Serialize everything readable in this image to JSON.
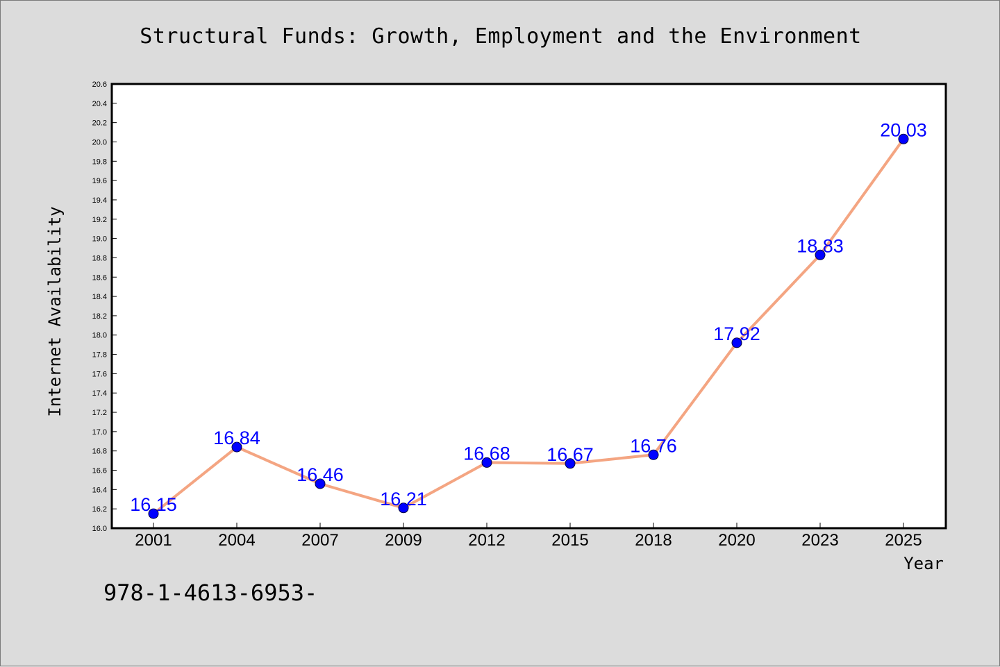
{
  "chart_data": {
    "type": "line",
    "title": "Structural Funds: Growth, Employment and the Environment",
    "xlabel": "Year",
    "ylabel": "Internet Availability",
    "categories": [
      "2001",
      "2004",
      "2007",
      "2009",
      "2012",
      "2015",
      "2018",
      "2020",
      "2023",
      "2025"
    ],
    "series": [
      {
        "values": [
          16.15,
          16.84,
          16.46,
          16.21,
          16.68,
          16.67,
          16.76,
          17.92,
          18.83,
          20.03
        ],
        "labels": [
          "16.15",
          "16.84",
          "16.46",
          "16.21",
          "16.68",
          "16.67",
          "16.76",
          "17.92",
          "18.83",
          "20.03"
        ],
        "line_color": "#f4a582",
        "marker_color": "#0000ff"
      }
    ],
    "ylim": [
      16.0,
      20.6
    ],
    "yticks": [
      "16.0",
      "16.2",
      "16.4",
      "16.6",
      "16.8",
      "17.0",
      "17.2",
      "17.4",
      "17.6",
      "17.8",
      "18.0",
      "18.2",
      "18.4",
      "18.6",
      "18.8",
      "19.0",
      "19.2",
      "19.4",
      "19.6",
      "19.8",
      "20.0",
      "20.2",
      "20.4",
      "20.6"
    ],
    "grid": false,
    "legend": "none",
    "data_label_color": "#0000ff"
  },
  "footnote": "978-1-4613-6953-"
}
